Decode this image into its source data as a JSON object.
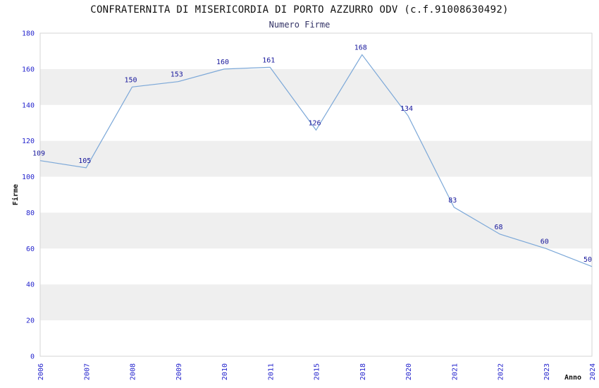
{
  "chart_data": {
    "type": "line",
    "title": "CONFRATERNITA DI MISERICORDIA DI PORTO AZZURRO ODV (c.f.91008630492)",
    "subtitle": "Numero Firme",
    "xlabel": "Anno",
    "ylabel": "Firme",
    "categories": [
      "2006",
      "2007",
      "2008",
      "2009",
      "2010",
      "2011",
      "2015",
      "2018",
      "2020",
      "2021",
      "2022",
      "2023",
      "2024"
    ],
    "values": [
      109,
      105,
      150,
      153,
      160,
      161,
      126,
      168,
      134,
      83,
      68,
      60,
      50
    ],
    "ylim": [
      0,
      180
    ],
    "ytick_step": 20,
    "grid": "horizontal-alternating-bands",
    "legend": "none",
    "colors": {
      "line": "#7CA8D8",
      "point_label": "#16169B",
      "tick_label": "#2525CD",
      "band": "#EFEFEF",
      "border": "#D6D6D6",
      "title": "#111111",
      "subtitle": "#333366",
      "axis_label": "#111111"
    }
  }
}
